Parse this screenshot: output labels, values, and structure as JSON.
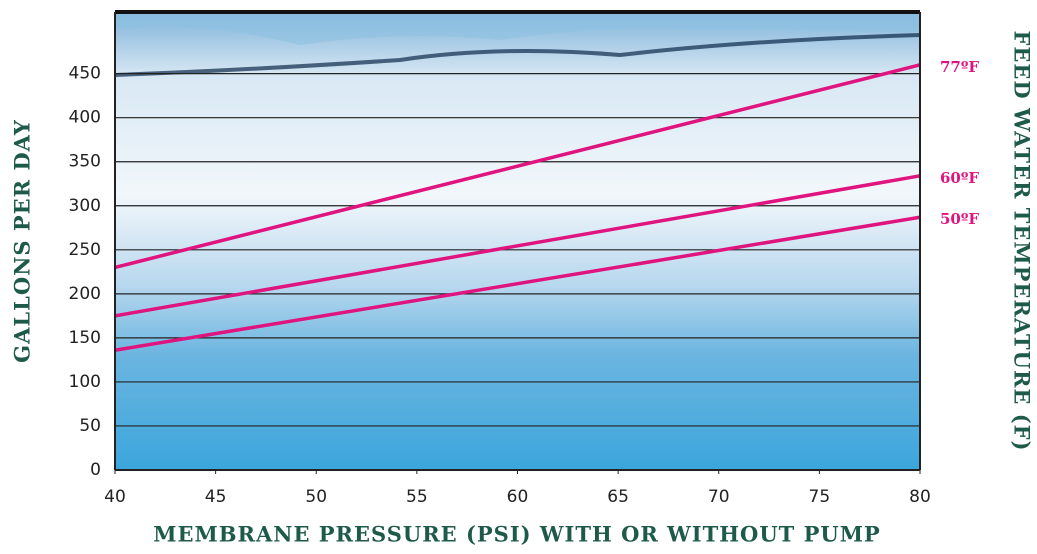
{
  "chart_data": {
    "type": "line",
    "x_label": "MEMBRANE PRESSURE (PSI) WITH OR WITHOUT PUMP",
    "y_label": "GALLONS PER DAY",
    "y2_label": "FEED WATER TEMPERATURE (F)",
    "x": [
      40,
      80
    ],
    "series": [
      {
        "name": "77ºF",
        "color": "#e0147f",
        "values": [
          230,
          460
        ]
      },
      {
        "name": "60ºF",
        "color": "#e0147f",
        "values": [
          175,
          334
        ]
      },
      {
        "name": "50ºF",
        "color": "#e0147f",
        "values": [
          136,
          287
        ]
      }
    ],
    "xlim": [
      40,
      80
    ],
    "xticks": [
      40,
      45,
      50,
      55,
      60,
      65,
      70,
      75,
      80
    ],
    "ylim": [
      0,
      520
    ],
    "yticks": [
      0,
      50,
      100,
      150,
      200,
      250,
      300,
      350,
      400,
      450
    ],
    "grid": true
  }
}
